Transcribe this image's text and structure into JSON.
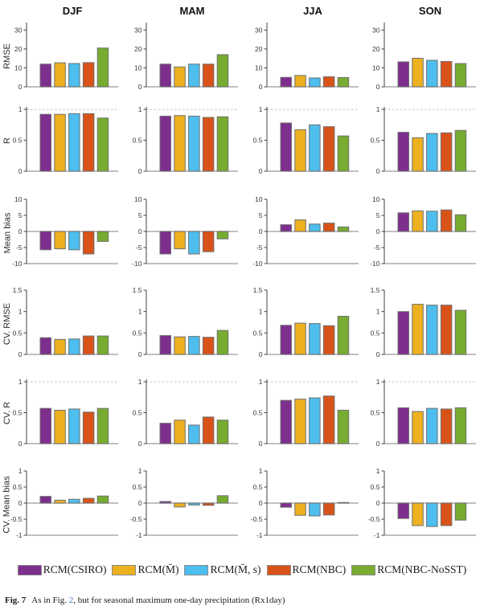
{
  "figure": {
    "columns": [
      "DJF",
      "MAM",
      "JJA",
      "SON"
    ],
    "models": [
      {
        "label": "RCM(CSIRO)",
        "color": "#7E2F8E"
      },
      {
        "label": "RCM(M̄)",
        "color": "#EDB120"
      },
      {
        "label": "RCM(M̄, s)",
        "color": "#4DBEEE"
      },
      {
        "label": "RCM(NBC)",
        "color": "#D95319"
      },
      {
        "label": "RCM(NBC-NoSST)",
        "color": "#77AC30"
      }
    ],
    "style": {
      "bar_edge_color": "#707070",
      "axis_spine_color": "#404040",
      "baseline_color": "#ababab",
      "ref_line_color": "#c0c0c0"
    }
  },
  "chart_data": [
    {
      "type": "bar",
      "ylabel": "RMSE",
      "ylim": [
        0,
        34
      ],
      "yticks": [
        0,
        10,
        20,
        30
      ],
      "ref_line": null,
      "bar_order": [
        "RCM(CSIRO)",
        "RCM(M̄)",
        "RCM(M̄, s)",
        "RCM(NBC)",
        "RCM(NBC-NoSST)"
      ],
      "values": {
        "DJF": [
          12.0,
          12.7,
          12.3,
          12.8,
          20.5
        ],
        "MAM": [
          12.0,
          10.5,
          12.0,
          12.0,
          17.0
        ],
        "JJA": [
          5.0,
          6.0,
          4.7,
          5.3,
          4.9
        ],
        "SON": [
          13.2,
          15.1,
          14.0,
          13.4,
          12.3
        ]
      }
    },
    {
      "type": "bar",
      "ylabel": "R",
      "ylim": [
        0,
        1.04
      ],
      "yticks": [
        0,
        0.5,
        1
      ],
      "ref_line": 1,
      "bar_order": [
        "RCM(CSIRO)",
        "RCM(M̄)",
        "RCM(M̄, s)",
        "RCM(NBC)",
        "RCM(NBC-NoSST)"
      ],
      "values": {
        "DJF": [
          0.92,
          0.92,
          0.93,
          0.93,
          0.86
        ],
        "MAM": [
          0.89,
          0.9,
          0.89,
          0.87,
          0.88
        ],
        "JJA": [
          0.78,
          0.67,
          0.75,
          0.72,
          0.57
        ],
        "SON": [
          0.63,
          0.54,
          0.61,
          0.62,
          0.66
        ]
      }
    },
    {
      "type": "bar",
      "ylabel": "Mean bias",
      "ylim": [
        -10,
        10
      ],
      "yticks": [
        -10,
        -5,
        0,
        5,
        10
      ],
      "ref_line": null,
      "bar_order": [
        "RCM(CSIRO)",
        "RCM(M̄)",
        "RCM(M̄, s)",
        "RCM(NBC)",
        "RCM(NBC-NoSST)"
      ],
      "values": {
        "DJF": [
          -5.7,
          -5.4,
          -5.7,
          -7.0,
          -3.1
        ],
        "MAM": [
          -7.0,
          -5.4,
          -7.0,
          -6.3,
          -2.3
        ],
        "JJA": [
          2.1,
          3.6,
          2.3,
          2.6,
          1.4
        ],
        "SON": [
          5.8,
          6.4,
          6.3,
          6.7,
          5.2
        ]
      }
    },
    {
      "type": "bar",
      "ylabel": "CV. RMSE",
      "ylim": [
        0,
        1.5
      ],
      "yticks": [
        0,
        0.5,
        1,
        1.5
      ],
      "ref_line": null,
      "bar_order": [
        "RCM(CSIRO)",
        "RCM(M̄)",
        "RCM(M̄, s)",
        "RCM(NBC)",
        "RCM(NBC-NoSST)"
      ],
      "values": {
        "DJF": [
          0.39,
          0.35,
          0.36,
          0.43,
          0.43
        ],
        "MAM": [
          0.44,
          0.41,
          0.42,
          0.4,
          0.56
        ],
        "JJA": [
          0.68,
          0.73,
          0.72,
          0.67,
          0.89
        ],
        "SON": [
          1.0,
          1.17,
          1.15,
          1.15,
          1.03
        ]
      }
    },
    {
      "type": "bar",
      "ylabel": "CV. R",
      "ylim": [
        0,
        1.04
      ],
      "yticks": [
        0,
        0.5,
        1
      ],
      "ref_line": 1,
      "bar_order": [
        "RCM(CSIRO)",
        "RCM(M̄)",
        "RCM(M̄, s)",
        "RCM(NBC)",
        "RCM(NBC-NoSST)"
      ],
      "values": {
        "DJF": [
          0.57,
          0.54,
          0.56,
          0.51,
          0.57
        ],
        "MAM": [
          0.33,
          0.38,
          0.3,
          0.43,
          0.38
        ],
        "JJA": [
          0.7,
          0.72,
          0.74,
          0.77,
          0.54
        ],
        "SON": [
          0.58,
          0.52,
          0.57,
          0.56,
          0.58
        ]
      }
    },
    {
      "type": "bar",
      "ylabel": "CV. Mean bias",
      "ylim": [
        -1,
        1
      ],
      "yticks": [
        -1,
        -0.5,
        0,
        0.5,
        1
      ],
      "ref_line": null,
      "bar_order": [
        "RCM(CSIRO)",
        "RCM(M̄)",
        "RCM(M̄, s)",
        "RCM(NBC)",
        "RCM(NBC-NoSST)"
      ],
      "values": {
        "DJF": [
          0.21,
          0.09,
          0.12,
          0.15,
          0.22
        ],
        "MAM": [
          0.05,
          -0.12,
          -0.06,
          -0.07,
          0.23
        ],
        "JJA": [
          -0.13,
          -0.38,
          -0.4,
          -0.37,
          0.02
        ],
        "SON": [
          -0.48,
          -0.7,
          -0.73,
          -0.7,
          -0.53
        ]
      }
    }
  ],
  "legend": {
    "entries": [
      {
        "label": "RCM(CSIRO)",
        "color": "#7E2F8E"
      },
      {
        "label": "RCM(M̄)",
        "color": "#EDB120"
      },
      {
        "label": "RCM(M̄, s)",
        "color": "#4DBEEE"
      },
      {
        "label": "RCM(NBC)",
        "color": "#D95319"
      },
      {
        "label": "RCM(NBC-NoSST)",
        "color": "#77AC30"
      }
    ]
  },
  "caption": {
    "fig_label": "Fig. 7",
    "text_before_link": "As in Fig. ",
    "link_text": "2",
    "text_after_link": ", but for seasonal maximum one-day precipitation (Rx1day)"
  }
}
